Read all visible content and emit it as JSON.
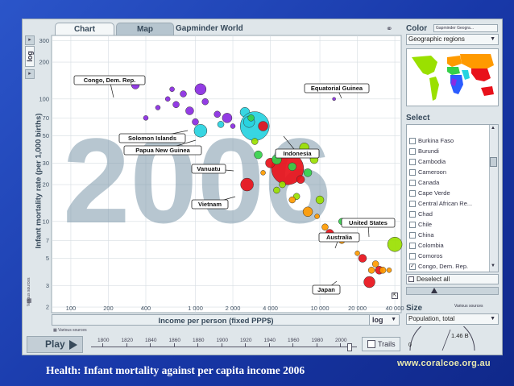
{
  "tabs": [
    {
      "label": "Chart"
    },
    {
      "label": "Map"
    }
  ],
  "app_title": "Gapminder World",
  "y_axis": {
    "scale": "log",
    "label": "Infant mortality rate (per 1,000 births)",
    "sources": "Various sources",
    "ticks": [
      "2",
      "3",
      "5",
      "7",
      "10",
      "20",
      "30",
      "50",
      "70",
      "100",
      "200",
      "300"
    ]
  },
  "x_axis": {
    "scale": "log",
    "label": "Income per person (fixed PPP$)",
    "sources": "Various sources",
    "ticks": [
      "100",
      "200",
      "400",
      "1 000",
      "2 000",
      "4 000",
      "10 000",
      "20 000",
      "40 000"
    ]
  },
  "year": "2006",
  "country_labels": [
    {
      "name": "Congo, Dem. Rep."
    },
    {
      "name": "Equatorial Guinea"
    },
    {
      "name": "Solomon Islands"
    },
    {
      "name": "Papua New Guinea"
    },
    {
      "name": "Indonesia"
    },
    {
      "name": "Vanuatu"
    },
    {
      "name": "Vietnam"
    },
    {
      "name": "United States"
    },
    {
      "name": "Australia"
    },
    {
      "name": "Japan"
    }
  ],
  "play": {
    "label": "Play"
  },
  "timeline_years": [
    "1800",
    "1820",
    "1840",
    "1860",
    "1880",
    "1900",
    "1920",
    "1940",
    "1960",
    "1980",
    "2000"
  ],
  "trails": {
    "label": "Trails"
  },
  "color_panel": {
    "title": "Color",
    "source": "Gapminder Geogra...",
    "selected": "Geographic regions"
  },
  "select_panel": {
    "title": "Select",
    "items": [
      {
        "label": "Burkina Faso",
        "checked": false
      },
      {
        "label": "Burundi",
        "checked": false
      },
      {
        "label": "Cambodia",
        "checked": false
      },
      {
        "label": "Cameroon",
        "checked": false
      },
      {
        "label": "Canada",
        "checked": false
      },
      {
        "label": "Cape Verde",
        "checked": false
      },
      {
        "label": "Central African Re...",
        "checked": false
      },
      {
        "label": "Chad",
        "checked": false
      },
      {
        "label": "Chile",
        "checked": false
      },
      {
        "label": "China",
        "checked": false
      },
      {
        "label": "Colombia",
        "checked": false
      },
      {
        "label": "Comoros",
        "checked": false
      },
      {
        "label": "Congo, Dem. Rep.",
        "checked": true
      }
    ],
    "deselect_label": "Deselect all"
  },
  "size_panel": {
    "title": "Size",
    "sources": "Various sources",
    "selected": "Population, total",
    "max_value": "1.46 B",
    "min_value": "0"
  },
  "caption": "Health: Infant mortality against per capita income 2006",
  "site_url": "www.coralcoe.org.au",
  "colors": {
    "africa": "#2b5cff",
    "south_asia": "#27d3e0",
    "east_asia_pacific": "#e8111a",
    "europe_central_asia": "#ff9a00",
    "americas": "#9ae000",
    "middle_east_north_africa": "#35d04a",
    "sub_saharan_africa": "#8a2be2"
  }
}
